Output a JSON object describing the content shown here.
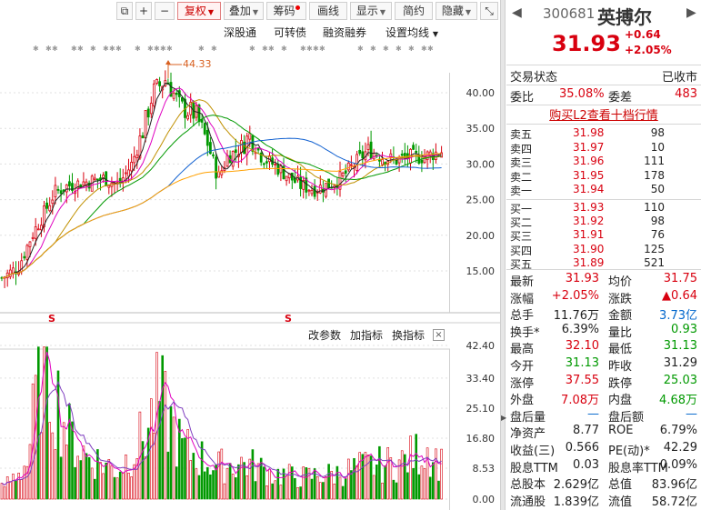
{
  "toolbar": {
    "buttons": [
      "复权",
      "叠加",
      "筹码",
      "画线",
      "显示",
      "简约",
      "隐藏"
    ],
    "icons": [
      "window-restore-icon",
      "plus-icon",
      "minus-icon",
      "collapse-icon"
    ]
  },
  "subbar": {
    "links": [
      "深股通",
      "可转债",
      "融资融券",
      "设置均线"
    ]
  },
  "price_panel": {
    "peak_label": "44.33",
    "y_ticks": [
      "40.00",
      "35.00",
      "30.00",
      "25.00",
      "20.00",
      "15.00"
    ],
    "signal_marks": [
      "S",
      "S"
    ]
  },
  "indicator_panel": {
    "links": [
      "改参数",
      "加指标",
      "换指标"
    ],
    "close": "×",
    "y_ticks": [
      "42.40",
      "33.40",
      "25.10",
      "16.80",
      "8.53",
      "0.00"
    ]
  },
  "quote": {
    "code": "300681",
    "name": "英搏尔",
    "price": "31.93",
    "change": "+0.64",
    "change_pct": "+2.05%",
    "trade_state_label": "交易状态",
    "trade_state_value": "已收市",
    "weibi_label": "委比",
    "weibi_value": "35.08%",
    "weicha_label": "委差",
    "weicha_value": "483",
    "l2_link": "购买L2查看十档行情",
    "asks": [
      {
        "label": "卖五",
        "price": "31.98",
        "vol": "98"
      },
      {
        "label": "卖四",
        "price": "31.97",
        "vol": "10"
      },
      {
        "label": "卖三",
        "price": "31.96",
        "vol": "111"
      },
      {
        "label": "卖二",
        "price": "31.95",
        "vol": "178"
      },
      {
        "label": "卖一",
        "price": "31.94",
        "vol": "50"
      }
    ],
    "bids": [
      {
        "label": "买一",
        "price": "31.93",
        "vol": "110"
      },
      {
        "label": "买二",
        "price": "31.92",
        "vol": "98"
      },
      {
        "label": "买三",
        "price": "31.91",
        "vol": "76"
      },
      {
        "label": "买四",
        "price": "31.90",
        "vol": "125"
      },
      {
        "label": "买五",
        "price": "31.89",
        "vol": "521"
      }
    ],
    "stats": [
      {
        "l1": "最新",
        "v1": "31.93",
        "c1": "red",
        "l2": "均价",
        "v2": "31.75",
        "c2": "red"
      },
      {
        "l1": "涨幅",
        "v1": "+2.05%",
        "c1": "red",
        "l2": "涨跌",
        "v2": "▲0.64",
        "c2": "red"
      },
      {
        "l1": "总手",
        "v1": "11.76万",
        "c1": "dark",
        "l2": "金额",
        "v2": "3.73亿",
        "c2": "blue"
      },
      {
        "l1": "换手*",
        "v1": "6.39%",
        "c1": "dark",
        "l2": "量比",
        "v2": "0.93",
        "c2": "green"
      },
      {
        "l1": "最高",
        "v1": "32.10",
        "c1": "red",
        "l2": "最低",
        "v2": "31.13",
        "c2": "green"
      },
      {
        "l1": "今开",
        "v1": "31.13",
        "c1": "green",
        "l2": "昨收",
        "v2": "31.29",
        "c2": "dark"
      },
      {
        "l1": "涨停",
        "v1": "37.55",
        "c1": "red",
        "l2": "跌停",
        "v2": "25.03",
        "c2": "green"
      },
      {
        "l1": "外盘",
        "v1": "7.08万",
        "c1": "red",
        "l2": "内盘",
        "v2": "4.68万",
        "c2": "green"
      },
      {
        "l1": "盘后量",
        "v1": "—",
        "c1": "blue",
        "l2": "盘后额",
        "v2": "—",
        "c2": "blue"
      },
      {
        "l1": "净资产",
        "v1": "8.77",
        "c1": "dark",
        "l2": "ROE",
        "v2": "6.79%",
        "c2": "dark"
      },
      {
        "l1": "收益(三)",
        "v1": "0.566",
        "c1": "dark",
        "l2": "PE(动)*",
        "v2": "42.29",
        "c2": "dark"
      },
      {
        "l1": "股息TTM",
        "v1": "0.03",
        "c1": "dark",
        "l2": "股息率TTM",
        "v2": "0.09%",
        "c2": "dark"
      },
      {
        "l1": "总股本",
        "v1": "2.629亿",
        "c1": "dark",
        "l2": "总值",
        "v2": "83.96亿",
        "c2": "dark"
      },
      {
        "l1": "流通股",
        "v1": "1.839亿",
        "c1": "dark",
        "l2": "流值",
        "v2": "58.72亿",
        "c2": "dark"
      }
    ]
  },
  "colors": {
    "up": "#d8000f",
    "down": "#009900",
    "ma5": "#222222",
    "ma10": "#e000c0",
    "ma20": "#c09000",
    "ma30": "#009900",
    "ma60": "#1060d0",
    "ma120": "#ffa000"
  }
}
